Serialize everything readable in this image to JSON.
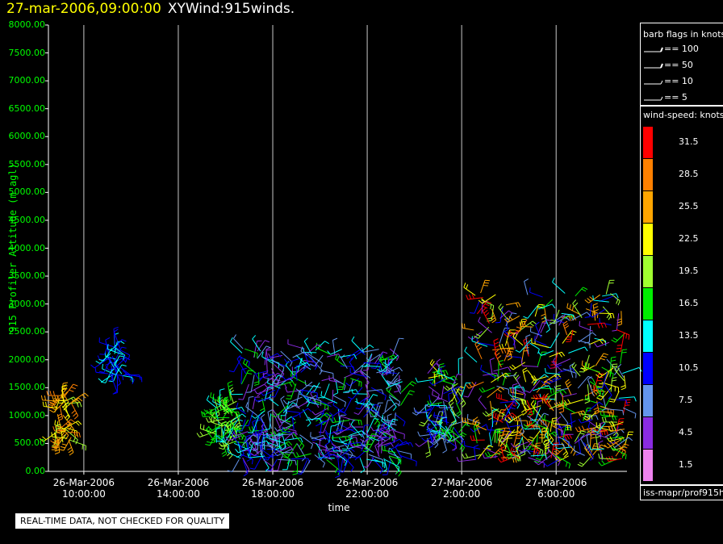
{
  "header": {
    "datetime": "27-mar-2006,09:00:00",
    "product": "XYWind:915winds."
  },
  "notice": "REAL-TIME DATA, NOT CHECKED FOR QUALITY",
  "legend": {
    "barb_title": "barb flags in knots",
    "barb_rows": [
      "== 100",
      "== 50",
      "== 10",
      "== 5"
    ],
    "speed_title": "wind-speed: knots",
    "speed_bins": [
      {
        "label": "31.5",
        "color": "#ff0000"
      },
      {
        "label": "28.5",
        "color": "#ff8000"
      },
      {
        "label": "25.5",
        "color": "#ffa500"
      },
      {
        "label": "22.5",
        "color": "#ffff00"
      },
      {
        "label": "19.5",
        "color": "#a0ff30"
      },
      {
        "label": "16.5",
        "color": "#00ee00"
      },
      {
        "label": "13.5",
        "color": "#00ffff"
      },
      {
        "label": "10.5",
        "color": "#0000ff"
      },
      {
        "label": "7.5",
        "color": "#6495ed"
      },
      {
        "label": "4.5",
        "color": "#8a2be2"
      },
      {
        "label": "1.5",
        "color": "#ee82ee"
      }
    ],
    "footer": "iss-mapr/prof915h"
  },
  "chart_data": {
    "type": "scatter",
    "title": "27-mar-2006,09:00:00 XYWind:915winds.",
    "xlabel": "time",
    "ylabel": "915 Profiler Altitude (m agl)",
    "ylim": [
      0,
      8000
    ],
    "xlim": [
      "2006-03-26 08:30",
      "2006-03-27 09:00"
    ],
    "x_ticks": [
      {
        "date": "26-Mar-2006",
        "time": "10:00:00",
        "hour": 10
      },
      {
        "date": "26-Mar-2006",
        "time": "14:00:00",
        "hour": 14
      },
      {
        "date": "26-Mar-2006",
        "time": "18:00:00",
        "hour": 18
      },
      {
        "date": "26-Mar-2006",
        "time": "22:00:00",
        "hour": 22
      },
      {
        "date": "27-Mar-2006",
        "time": "2:00:00",
        "hour": 26
      },
      {
        "date": "27-Mar-2006",
        "time": "6:00:00",
        "hour": 30
      }
    ],
    "y_ticks": [
      "0.00",
      "500.00",
      "1000.00",
      "1500.00",
      "2000.00",
      "2500.00",
      "3000.00",
      "3500.00",
      "4000.00",
      "4500.00",
      "5000.00",
      "5500.00",
      "6000.00",
      "6500.00",
      "7000.00",
      "7500.00",
      "8000.00"
    ],
    "grid": "vertical at x ticks",
    "legend": "right",
    "series": [
      {
        "time_range": [
          "26-Mar-2006 08:45",
          "26-Mar-2006 09:30"
        ],
        "altitude_range_m": [
          500,
          1400
        ],
        "speed_knots_range": [
          19,
          29
        ]
      },
      {
        "time_range": [
          "26-Mar-2006 11:00",
          "26-Mar-2006 11:45"
        ],
        "altitude_range_m": [
          1700,
          2300
        ],
        "speed_knots_range": [
          9,
          14
        ]
      },
      {
        "time_range": [
          "26-Mar-2006 15:30",
          "26-Mar-2006 16:30"
        ],
        "altitude_range_m": [
          500,
          1300
        ],
        "speed_knots_range": [
          12,
          20
        ]
      },
      {
        "time_range": [
          "26-Mar-2006 16:30",
          "26-Mar-2006 23:30"
        ],
        "altitude_range_m": [
          200,
          2200
        ],
        "speed_knots_range": [
          3,
          16
        ]
      },
      {
        "time_range": [
          "27-Mar-2006 00:30",
          "27-Mar-2006 02:00"
        ],
        "altitude_range_m": [
          500,
          1800
        ],
        "speed_knots_range": [
          4,
          22
        ]
      },
      {
        "time_range": [
          "27-Mar-2006 02:30",
          "27-Mar-2006 09:00"
        ],
        "altitude_range_m": [
          200,
          3200
        ],
        "speed_knots_range": [
          3,
          32
        ]
      }
    ]
  }
}
